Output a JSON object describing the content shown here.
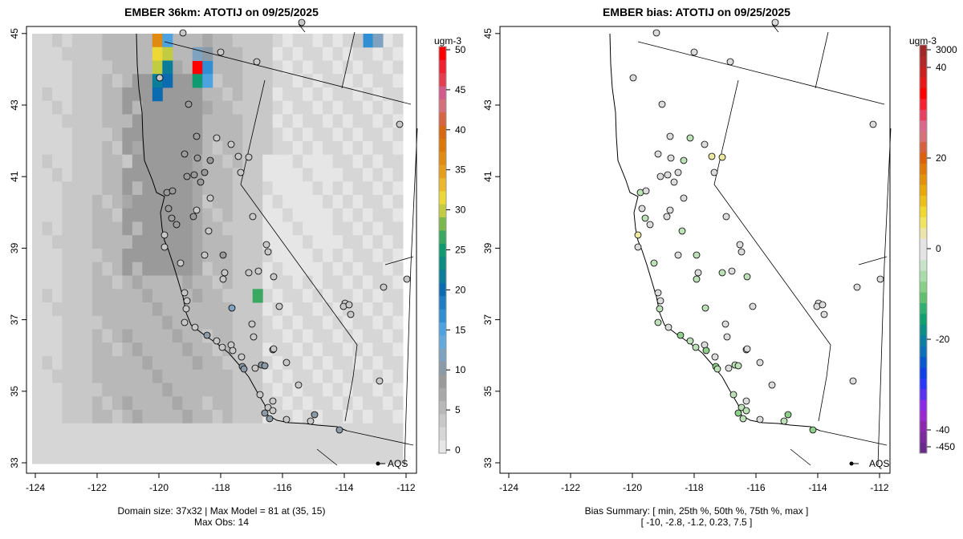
{
  "chart_data": [
    {
      "type": "heatmap",
      "title": "EMBER 36km: ATOTIJ on 09/25/2025",
      "x_ticks": [
        "-124",
        "-122",
        "-120",
        "-118",
        "-116",
        "-114",
        "-112"
      ],
      "y_ticks": [
        "33",
        "35",
        "37",
        "39",
        "41",
        "43",
        "45"
      ],
      "colorbar": {
        "unit": "ugm-3",
        "ticks": [
          "0",
          "5",
          "10",
          "15",
          "20",
          "25",
          "30",
          "35",
          "40",
          "45",
          "50"
        ]
      },
      "point_label": "AQS",
      "footer": [
        "Domain size: 37x32 | Max Model = 81 at (35, 15)",
        "Max Obs: 14"
      ]
    },
    {
      "type": "scatter",
      "title": "EMBER bias: ATOTIJ on 09/25/2025",
      "x_ticks": [
        "-124",
        "-122",
        "-120",
        "-118",
        "-116",
        "-114",
        "-112"
      ],
      "y_ticks": [
        "33",
        "35",
        "37",
        "39",
        "41",
        "43",
        "45"
      ],
      "colorbar": {
        "unit": "ugm-3",
        "ticks": [
          "-450",
          "-40",
          "-20",
          "0",
          "20",
          "40",
          "3000"
        ]
      },
      "point_label": "AQS",
      "footer": [
        "Bias Summary: [ min, 25th %, 50th %, 75th %, max ]",
        "[ -10,   -2.8,   -1.2,   0.23,   7.5 ]"
      ],
      "bias_summary": {
        "min": -10,
        "p25": -2.8,
        "p50": -1.2,
        "p75": 0.23,
        "max": 7.5
      }
    }
  ]
}
